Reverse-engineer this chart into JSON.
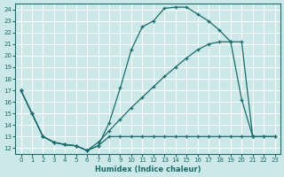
{
  "xlabel": "Humidex (Indice chaleur)",
  "bg_color": "#cce8e8",
  "line_color": "#1a6b6b",
  "grid_color": "#b8d8d8",
  "xlim": [
    -0.5,
    23.5
  ],
  "ylim": [
    11.5,
    24.5
  ],
  "xticks": [
    0,
    1,
    2,
    3,
    4,
    5,
    6,
    7,
    8,
    9,
    10,
    11,
    12,
    13,
    14,
    15,
    16,
    17,
    18,
    19,
    20,
    21,
    22,
    23
  ],
  "yticks": [
    12,
    13,
    14,
    15,
    16,
    17,
    18,
    19,
    20,
    21,
    22,
    23,
    24
  ],
  "curve1_x": [
    0,
    1,
    2,
    3,
    4,
    5,
    6,
    7,
    8,
    9,
    10,
    11,
    12,
    13,
    14,
    15,
    16,
    17,
    18,
    19,
    20,
    21
  ],
  "curve1_y": [
    17,
    15,
    13,
    12.5,
    12.3,
    12.2,
    11.8,
    12.2,
    14.2,
    17.2,
    20.5,
    22.5,
    23.0,
    24.1,
    24.2,
    24.2,
    23.6,
    23.0,
    22.2,
    21.2,
    16.2,
    13.0
  ],
  "curve2_x": [
    0,
    1,
    2,
    3,
    4,
    5,
    6,
    7,
    8,
    9,
    10,
    11,
    12,
    13,
    14,
    15,
    16,
    17,
    18,
    19,
    20,
    21,
    22,
    23
  ],
  "curve2_y": [
    17,
    15,
    13,
    12.5,
    12.3,
    12.2,
    11.8,
    12.2,
    13.0,
    13.0,
    13.0,
    13.0,
    13.0,
    13.0,
    13.0,
    13.0,
    13.0,
    13.0,
    13.0,
    13.0,
    13.0,
    13.0,
    13.0,
    13.0
  ],
  "curve3_x": [
    0,
    1,
    2,
    3,
    4,
    5,
    6,
    7,
    8,
    9,
    10,
    11,
    12,
    13,
    14,
    15,
    16,
    17,
    18,
    19,
    20,
    21,
    22,
    23
  ],
  "curve3_y": [
    17,
    15,
    13,
    12.5,
    12.3,
    12.2,
    11.8,
    12.5,
    13.5,
    14.5,
    15.5,
    16.4,
    17.3,
    18.2,
    19.0,
    19.8,
    20.5,
    21.0,
    21.2,
    21.2,
    21.2,
    13.0,
    13.0,
    13.0
  ]
}
